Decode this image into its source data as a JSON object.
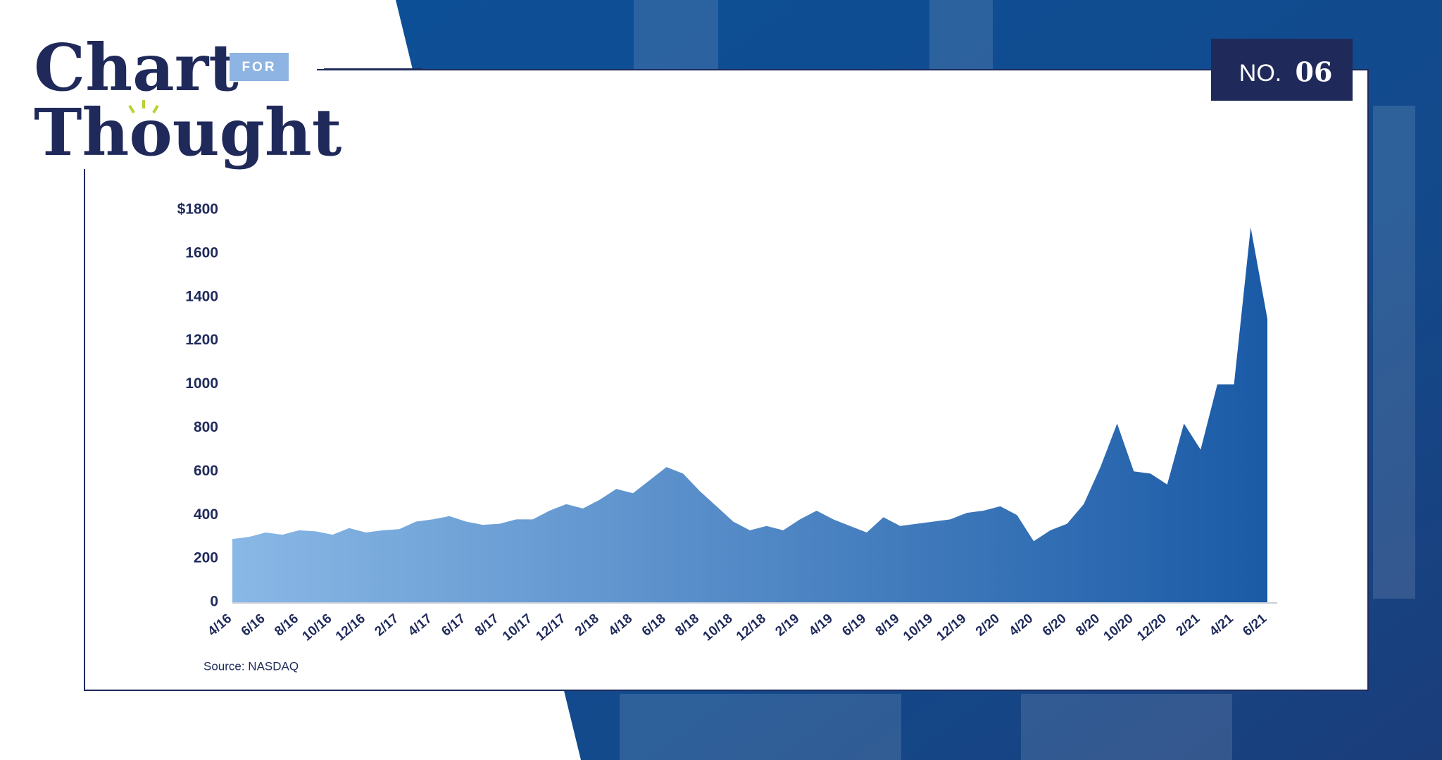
{
  "logo": {
    "line1": "Chart",
    "tag": "FOR",
    "line2": "Thought"
  },
  "badge": {
    "prefix": "NO.",
    "number": "06"
  },
  "chart_data": {
    "type": "area",
    "source": "Source: NASDAQ",
    "x": [
      "4/16",
      null,
      "6/16",
      null,
      "8/16",
      null,
      "10/16",
      null,
      "12/16",
      null,
      "2/17",
      null,
      "4/17",
      null,
      "6/17",
      null,
      "8/17",
      null,
      "10/17",
      null,
      "12/17",
      null,
      "2/18",
      null,
      "4/18",
      null,
      "6/18",
      null,
      "8/18",
      null,
      "10/18",
      null,
      "12/18",
      null,
      "2/19",
      null,
      "4/19",
      null,
      "6/19",
      null,
      "8/19",
      null,
      "10/19",
      null,
      "12/19",
      null,
      "2/20",
      null,
      "4/20",
      null,
      "6/20",
      null,
      "8/20",
      null,
      "10/20",
      null,
      "12/20",
      null,
      "2/21",
      null,
      "4/21",
      null,
      "6/21"
    ],
    "values": [
      290,
      300,
      320,
      310,
      330,
      325,
      310,
      340,
      320,
      330,
      335,
      370,
      380,
      395,
      370,
      355,
      360,
      380,
      380,
      420,
      450,
      430,
      470,
      520,
      500,
      560,
      620,
      590,
      510,
      440,
      370,
      330,
      350,
      330,
      380,
      420,
      380,
      350,
      320,
      390,
      350,
      360,
      370,
      380,
      410,
      420,
      440,
      400,
      280,
      330,
      360,
      450,
      620,
      820,
      600,
      590,
      540,
      820,
      700,
      1000,
      1000,
      1720,
      1300
    ],
    "color_start": "#8ab8e6",
    "color_end": "#1a5aa6",
    "ylim": [
      0,
      1800
    ],
    "yticks": [
      0,
      200,
      400,
      600,
      800,
      1000,
      1200,
      1400,
      1600,
      {
        "value": 1800,
        "label": "$1800"
      }
    ],
    "grid": false
  }
}
